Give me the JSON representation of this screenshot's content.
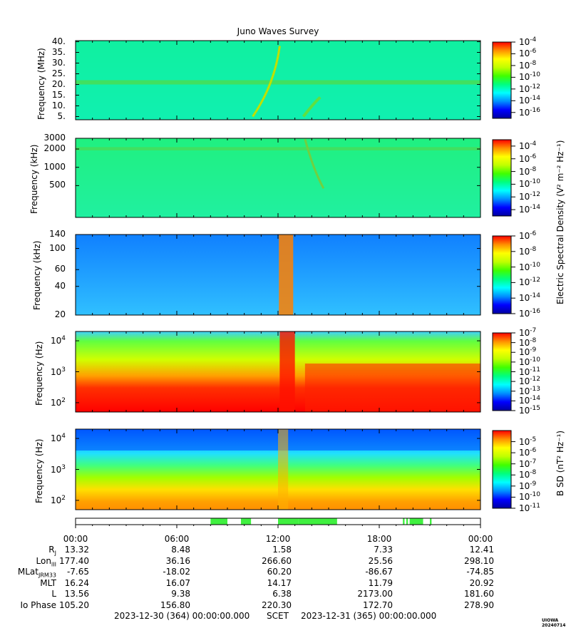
{
  "title": "Juno Waves Survey",
  "colors": {
    "colormap": [
      "#0000a0",
      "#0000ff",
      "#0090ff",
      "#00ffff",
      "#00ff80",
      "#40ff00",
      "#c0ff00",
      "#ffff00",
      "#ff9000",
      "#ff0000"
    ],
    "ephem_bar": "#40f040"
  },
  "chart_data": [
    {
      "type": "heatmap",
      "ylabel": "Frequency (MHz)",
      "yscale": "linear",
      "ylim": [
        3.5,
        40.5
      ],
      "yticks": [
        "5.",
        "10.",
        "15.",
        "20.",
        "25.",
        "30.",
        "35.",
        "40."
      ],
      "colorbar": {
        "scale": "log",
        "range_exponents": [
          -17,
          -4
        ],
        "tick_exponents": [
          "-4",
          "-6",
          "-8",
          "-10",
          "-12",
          "-14",
          "-16"
        ]
      },
      "features": [
        {
          "desc": "persistent emission band",
          "freq_MHz": 21,
          "level": "1e-11"
        },
        {
          "desc": "arc emission",
          "time_hours": [
            10.0,
            12.3
          ],
          "freq_MHz": [
            5,
            38
          ],
          "level": "1e-8"
        }
      ]
    },
    {
      "type": "heatmap",
      "ylabel": "Frequency (kHz)",
      "yscale": "log",
      "ylim": [
        150,
        3000
      ],
      "yticks": [
        "3000",
        "2000",
        "1000",
        "500"
      ],
      "colorbar": {
        "scale": "log",
        "range_exponents": [
          -15,
          -3
        ],
        "tick_exponents": [
          "-4",
          "-6",
          "-8",
          "-10",
          "-12",
          "-14"
        ]
      },
      "features": [
        {
          "desc": "persistent band",
          "freq_kHz": 2000,
          "level": "1e-11"
        },
        {
          "desc": "drifting arc",
          "time_hours": [
            13.5,
            14.8
          ],
          "freq_kHz": [
            500,
            3000
          ],
          "level": "1e-9"
        }
      ]
    },
    {
      "type": "heatmap",
      "ylabel": "Frequency (kHz)",
      "yscale": "log",
      "ylim": [
        20,
        140
      ],
      "yticks": [
        "140",
        "100",
        "60",
        "40",
        "20"
      ],
      "colorbar": {
        "scale": "log",
        "range_exponents": [
          -16,
          -6
        ],
        "tick_exponents": [
          "-6",
          "-8",
          "-10",
          "-12",
          "-14",
          "-16"
        ]
      },
      "features": [
        {
          "desc": "intense broadband burst",
          "time_hours": [
            12.0,
            13.0
          ],
          "level": "1e-7"
        }
      ]
    },
    {
      "type": "heatmap",
      "ylabel": "Frequency (Hz)",
      "yscale": "log",
      "ylim": [
        50,
        20000
      ],
      "yticks": [
        "10^4",
        "10^3",
        "10^2"
      ],
      "colorbar": {
        "scale": "log",
        "range_exponents": [
          -15,
          -7
        ],
        "tick_exponents": [
          "-7",
          "-8",
          "-9",
          "-10",
          "-11",
          "-12",
          "-13",
          "-14",
          "-15"
        ]
      },
      "features": [
        {
          "desc": "intense low-frequency emission",
          "freq_Hz": [
            50,
            1500
          ],
          "level": "1e-7"
        },
        {
          "desc": "broadband burst",
          "time_hours": [
            12.0,
            13.0
          ],
          "level": "1e-7"
        }
      ]
    },
    {
      "type": "heatmap",
      "ylabel": "Frequency (Hz)",
      "yscale": "log",
      "ylim": [
        50,
        20000
      ],
      "yticks": [
        "10^4",
        "10^3",
        "10^2"
      ],
      "colorbar": {
        "scale": "log",
        "range_exponents": [
          -11,
          -4
        ],
        "tick_exponents": [
          "-5",
          "-6",
          "-7",
          "-8",
          "-9",
          "-10",
          "-11"
        ]
      },
      "features": [
        {
          "desc": "low-frequency magnetic emission",
          "freq_Hz": [
            50,
            300
          ],
          "level": "1e-6"
        }
      ]
    }
  ],
  "shared_colorbar_label": "Electric Spectral Density (V² m⁻² Hz⁻¹)",
  "bfield_colorbar_label": "B SD (nT² Hz⁻¹)",
  "ephem_bar_segments_hours": [
    [
      8.0,
      9.0
    ],
    [
      9.8,
      10.4
    ],
    [
      12.0,
      13.2
    ],
    [
      13.2,
      15.5
    ],
    [
      19.4,
      19.5
    ],
    [
      19.6,
      19.7
    ],
    [
      19.8,
      20.6
    ],
    [
      21.0,
      21.1
    ]
  ],
  "time_labels": [
    "00:00",
    "06:00",
    "12:00",
    "18:00",
    "00:00"
  ],
  "ephemeris": [
    {
      "name": "R",
      "sub": "J",
      "values": [
        "13.32",
        "8.48",
        "1.58",
        "7.33",
        "12.41"
      ]
    },
    {
      "name": "Lon",
      "sub": "III",
      "values": [
        "177.40",
        "36.16",
        "266.60",
        "25.56",
        "298.10"
      ]
    },
    {
      "name": "MLat",
      "sub": "JRM33",
      "values": [
        "-7.65",
        "-18.02",
        "60.20",
        "-86.67",
        "-74.85"
      ]
    },
    {
      "name": "MLT",
      "sub": "",
      "values": [
        "16.24",
        "16.07",
        "14.17",
        "11.79",
        "20.92"
      ]
    },
    {
      "name": "L",
      "sub": "",
      "values": [
        "13.56",
        "9.38",
        "6.38",
        "2173.00",
        "181.60"
      ]
    },
    {
      "name": "Io Phase",
      "sub": "",
      "values": [
        "105.20",
        "156.80",
        "220.30",
        "172.70",
        "278.90"
      ]
    }
  ],
  "footer": {
    "start": "2023-12-30 (364) 00:00:00.000",
    "scet": "SCET",
    "end": "2023-12-31 (365) 00:00:00.000"
  },
  "version": "UIOWA 20240714"
}
